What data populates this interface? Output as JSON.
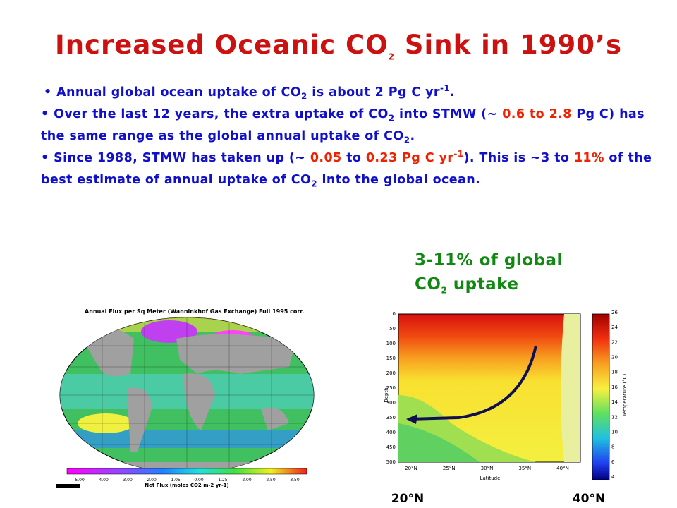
{
  "title": [
    {
      "text": "Increased Oceanic CO"
    },
    {
      "text": "2",
      "style": "sub"
    },
    {
      "text": " Sink in 1990’s"
    }
  ],
  "bullets": [
    [
      {
        "text": "• Annual global ocean uptake of CO"
      },
      {
        "text": "2",
        "style": "sub"
      },
      {
        "text": " is about 2 Pg C yr"
      },
      {
        "text": "-1",
        "style": "sup"
      },
      {
        "text": "."
      }
    ],
    [
      {
        "text": "• Over the last 12 years, the extra uptake of CO"
      },
      {
        "text": "2",
        "style": "sub"
      },
      {
        "text": " into STMW (~ "
      },
      {
        "text": "0.6 to 2.8",
        "color": "red"
      },
      {
        "text": " Pg C) has the same range as the global annual uptake of CO"
      },
      {
        "text": "2",
        "style": "sub"
      },
      {
        "text": "."
      }
    ],
    [
      {
        "text": "• Since 1988, STMW has taken up (~ "
      },
      {
        "text": "0.05",
        "color": "red"
      },
      {
        "text": " to "
      },
      {
        "text": "0.23 Pg C yr",
        "color": "red"
      },
      {
        "text": "-1",
        "style": "sup",
        "color": "red"
      },
      {
        "text": "). This is ~3 to "
      },
      {
        "text": "11%",
        "color": "red"
      },
      {
        "text": " of the best estimate of annual uptake of  CO"
      },
      {
        "text": "2",
        "style": "sub"
      },
      {
        "text": " into the global ocean."
      }
    ]
  ],
  "callout": [
    {
      "text": "3-11% of global"
    },
    {
      "text": "CO",
      "style": "br"
    },
    {
      "text": "2",
      "style": "sub"
    },
    {
      "text": " uptake"
    }
  ],
  "map": {
    "title": "Annual Flux per Sq Meter (Wanninkhof Gas Exchange) Full 1995 corr.",
    "colorbar_label": "Net Flux (moles CO2 m-2 yr-1)",
    "colorbar_ticks": [
      "-5.00",
      "-4.00",
      "-3.00",
      "-2.00",
      "-1.05",
      "0.00",
      "1.25",
      "2.00",
      "2.50",
      "3.50"
    ]
  },
  "section": {
    "depth_label": "Depth",
    "latitude_label": "Latitude",
    "colorbar_label": "Temperature (°C)",
    "depth_ticks": [
      "0",
      "50",
      "100",
      "150",
      "200",
      "250",
      "300",
      "350",
      "400",
      "450",
      "500"
    ],
    "latitude_ticks": [
      "20°N",
      "25°N",
      "30°N",
      "35°N",
      "40°N"
    ],
    "temperature_ticks": [
      "4",
      "6",
      "8",
      "10",
      "12",
      "14",
      "16",
      "18",
      "20",
      "22",
      "24",
      "26"
    ],
    "left_marker": "20°N",
    "right_marker": "40°N"
  }
}
